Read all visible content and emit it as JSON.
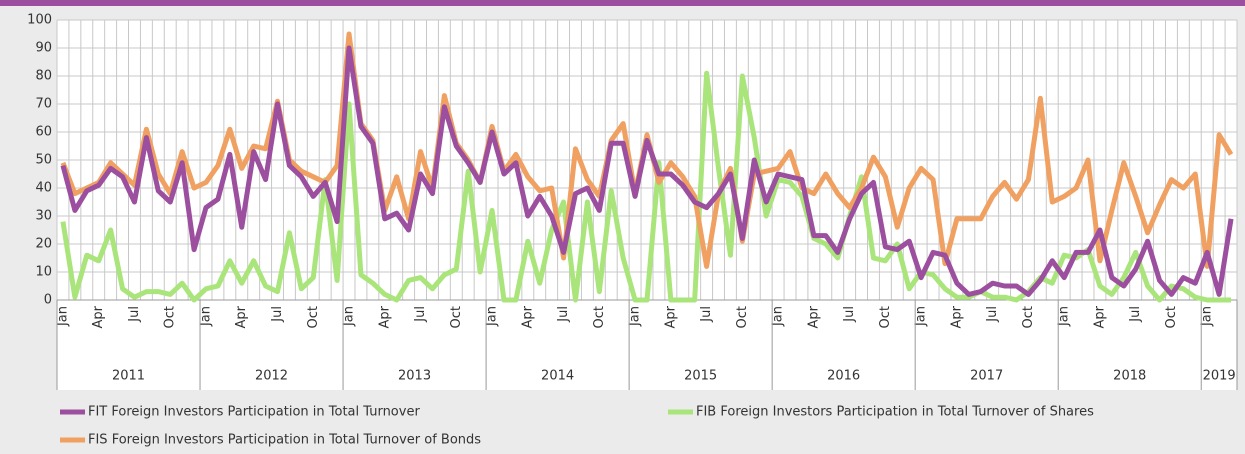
{
  "chart_data": {
    "type": "line",
    "categories": [
      "Jan",
      null,
      null,
      "Apr",
      null,
      null,
      "Jul",
      null,
      null,
      "Oct",
      null,
      null,
      "Jan",
      null,
      null,
      "Apr",
      null,
      null,
      "Jul",
      null,
      null,
      "Oct",
      null,
      null,
      "Jan",
      null,
      null,
      "Apr",
      null,
      null,
      "Jul",
      null,
      null,
      "Oct",
      null,
      null,
      "Jan",
      null,
      null,
      "Apr",
      null,
      null,
      "Jul",
      null,
      null,
      "Oct",
      null,
      null,
      "Jan",
      null,
      null,
      "Apr",
      null,
      null,
      "Jul",
      null,
      null,
      "Oct",
      null,
      null,
      "Jan",
      null,
      null,
      "Apr",
      null,
      null,
      "Jul",
      null,
      null,
      "Oct",
      null,
      null,
      "Jan",
      null,
      null,
      "Apr",
      null,
      null,
      "Jul",
      null,
      null,
      "Oct",
      null,
      null,
      "Jan",
      null,
      null,
      "Apr",
      null,
      null,
      "Jul",
      null,
      null,
      "Oct",
      null,
      null,
      "Jan",
      null,
      null
    ],
    "years": [
      "2011",
      "2012",
      "2013",
      "2014",
      "2015",
      "2016",
      "2017",
      "2018",
      "2019"
    ],
    "ylim": [
      0,
      100
    ],
    "yticks": [
      0,
      10,
      20,
      30,
      40,
      50,
      60,
      70,
      80,
      90,
      100
    ],
    "grid": true,
    "series": [
      {
        "name": "FIT Foreign Investors Participation in Total Turnover",
        "color": "#9b4f9e",
        "values": [
          48,
          32,
          39,
          41,
          47,
          44,
          35,
          58,
          39,
          35,
          49,
          18,
          33,
          36,
          52,
          26,
          53,
          43,
          70,
          48,
          44,
          37,
          42,
          28,
          90,
          62,
          56,
          29,
          31,
          25,
          45,
          38,
          69,
          55,
          49,
          42,
          60,
          45,
          49,
          30,
          37,
          30,
          17,
          38,
          40,
          32,
          56,
          56,
          37,
          57,
          45,
          45,
          41,
          35,
          33,
          38,
          45,
          22,
          50,
          35,
          45,
          44,
          43,
          23,
          23,
          17,
          29,
          38,
          42,
          19,
          18,
          21,
          8,
          17,
          16,
          6,
          2,
          3,
          6,
          5,
          5,
          2,
          7,
          14,
          8,
          17,
          17,
          25,
          8,
          5,
          11,
          21,
          7,
          2,
          8,
          6,
          17,
          2,
          29
        ]
      },
      {
        "name": "FIB Foreign Investors Participation in Total Turnover of Shares",
        "color": "#a9e57a",
        "values": [
          28,
          1,
          16,
          14,
          25,
          4,
          1,
          3,
          3,
          2,
          6,
          0,
          4,
          5,
          14,
          6,
          14,
          5,
          3,
          24,
          4,
          8,
          43,
          7,
          70,
          9,
          6,
          2,
          0,
          7,
          8,
          4,
          9,
          11,
          46,
          10,
          32,
          0,
          0,
          21,
          6,
          25,
          35,
          0,
          35,
          3,
          39,
          15,
          0,
          0,
          49,
          0,
          0,
          0,
          81,
          47,
          16,
          80,
          58,
          30,
          43,
          42,
          37,
          22,
          20,
          15,
          30,
          44,
          15,
          14,
          20,
          4,
          10,
          9,
          4,
          1,
          1,
          3,
          1,
          1,
          0,
          3,
          8,
          6,
          16,
          15,
          18,
          5,
          2,
          8,
          17,
          5,
          0,
          5,
          4,
          1,
          0,
          0,
          0
        ]
      },
      {
        "name": "FIS Foreign Investors Participation in Total Turnover of Bonds",
        "color": "#f0a060",
        "values": [
          49,
          38,
          40,
          42,
          49,
          45,
          41,
          61,
          45,
          38,
          53,
          40,
          42,
          48,
          61,
          47,
          55,
          54,
          71,
          50,
          46,
          44,
          42,
          48,
          95,
          63,
          57,
          32,
          44,
          29,
          53,
          40,
          73,
          56,
          50,
          42,
          62,
          46,
          52,
          44,
          39,
          40,
          15,
          54,
          43,
          37,
          57,
          63,
          38,
          59,
          42,
          49,
          44,
          37,
          12,
          38,
          47,
          21,
          45,
          46,
          47,
          53,
          40,
          38,
          45,
          38,
          33,
          40,
          51,
          44,
          26,
          40,
          47,
          43,
          13,
          29,
          29,
          29,
          37,
          42,
          36,
          43,
          72,
          35,
          37,
          40,
          50,
          14,
          32,
          49,
          37,
          24,
          34,
          43,
          40,
          45,
          12,
          59,
          52
        ]
      }
    ]
  }
}
